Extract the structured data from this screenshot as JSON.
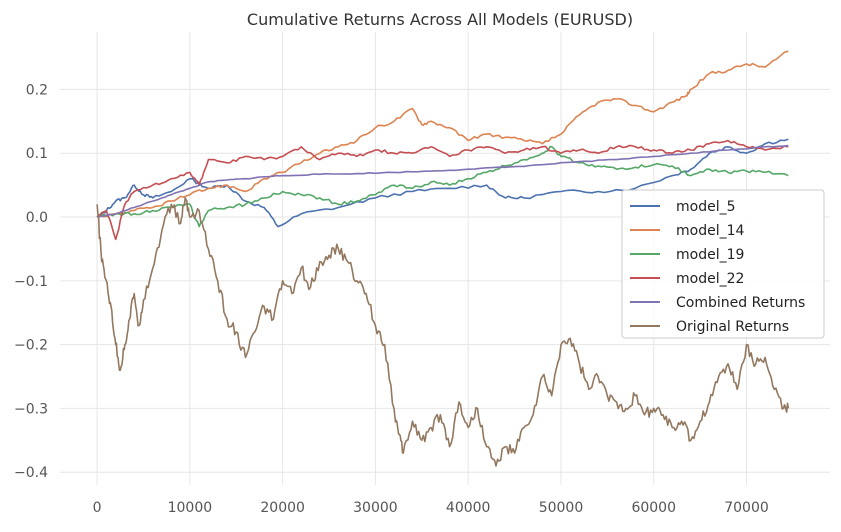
{
  "chart_data": {
    "type": "line",
    "title": "Cumulative Returns Across All Models (EURUSD)",
    "xlabel": "",
    "ylabel": "",
    "xlim": [
      -4000,
      79000
    ],
    "ylim": [
      -0.42,
      0.29
    ],
    "xticks": [
      0,
      10000,
      20000,
      30000,
      40000,
      50000,
      60000,
      70000
    ],
    "yticks": [
      -0.4,
      -0.3,
      -0.2,
      -0.1,
      0.0,
      0.1,
      0.2
    ],
    "xtick_labels": [
      "0",
      "10000",
      "20000",
      "30000",
      "40000",
      "50000",
      "60000",
      "70000"
    ],
    "ytick_labels": [
      "−0.4",
      "−0.3",
      "−0.2",
      "−0.1",
      "0.0",
      "0.1",
      "0.2"
    ],
    "grid": true,
    "legend_position": "center-right",
    "series": [
      {
        "name": "model_5",
        "color": "#4c72b0",
        "x": [
          0,
          1000,
          2000,
          3000,
          4000,
          5000,
          6000,
          8000,
          10000,
          12000,
          14000,
          16000,
          18000,
          19500,
          22000,
          26000,
          30000,
          34000,
          38000,
          42000,
          44000,
          46000,
          50000,
          54000,
          58000,
          62000,
          64000,
          66000,
          68000,
          70000,
          72000,
          74500
        ],
        "y": [
          0.0,
          0.01,
          0.025,
          0.03,
          0.05,
          0.035,
          0.03,
          0.04,
          0.06,
          0.045,
          0.05,
          0.025,
          0.015,
          -0.015,
          0.005,
          0.015,
          0.03,
          0.04,
          0.045,
          0.05,
          0.03,
          0.03,
          0.04,
          0.04,
          0.045,
          0.065,
          0.075,
          0.1,
          0.11,
          0.1,
          0.115,
          0.122
        ]
      },
      {
        "name": "model_14",
        "color": "#dd8452",
        "x": [
          0,
          2000,
          4000,
          6000,
          8000,
          10000,
          12000,
          14000,
          16000,
          18000,
          20000,
          22000,
          24000,
          26000,
          28000,
          30000,
          32000,
          34000,
          35000,
          36000,
          38000,
          40000,
          42000,
          44000,
          46000,
          48000,
          50000,
          52000,
          54000,
          56000,
          58000,
          60000,
          62000,
          63500,
          64000,
          66000,
          68000,
          70000,
          72000,
          74500
        ],
        "y": [
          0.0,
          0.005,
          0.01,
          0.015,
          0.025,
          0.035,
          0.045,
          0.05,
          0.04,
          0.06,
          0.07,
          0.085,
          0.1,
          0.11,
          0.12,
          0.14,
          0.15,
          0.17,
          0.145,
          0.15,
          0.14,
          0.12,
          0.13,
          0.125,
          0.12,
          0.115,
          0.13,
          0.16,
          0.18,
          0.185,
          0.175,
          0.165,
          0.18,
          0.19,
          0.2,
          0.225,
          0.23,
          0.24,
          0.235,
          0.26
        ]
      },
      {
        "name": "model_19",
        "color": "#55a868",
        "x": [
          0,
          2000,
          4000,
          6000,
          8000,
          10000,
          11000,
          12000,
          14000,
          16000,
          18000,
          20000,
          22000,
          24000,
          26000,
          28000,
          30000,
          32000,
          34000,
          36000,
          38000,
          40000,
          42000,
          44000,
          46000,
          48000,
          49000,
          50000,
          52000,
          54000,
          56000,
          58000,
          60000,
          62000,
          64000,
          66000,
          68000,
          70000,
          72000,
          74500
        ],
        "y": [
          0.0,
          0.005,
          0.005,
          0.01,
          0.015,
          0.02,
          -0.015,
          0.01,
          0.015,
          0.02,
          0.03,
          0.04,
          0.035,
          0.03,
          0.02,
          0.025,
          0.035,
          0.05,
          0.045,
          0.055,
          0.05,
          0.06,
          0.07,
          0.08,
          0.09,
          0.1,
          0.11,
          0.095,
          0.085,
          0.08,
          0.075,
          0.078,
          0.082,
          0.08,
          0.065,
          0.075,
          0.07,
          0.072,
          0.07,
          0.065
        ]
      },
      {
        "name": "model_22",
        "color": "#c44e52",
        "x": [
          0,
          1000,
          2000,
          3000,
          4000,
          6000,
          8000,
          10000,
          11000,
          12000,
          14000,
          16000,
          18000,
          20000,
          22000,
          24000,
          26000,
          28000,
          30000,
          32000,
          34000,
          36000,
          38000,
          40000,
          42000,
          44000,
          46000,
          48000,
          50000,
          52000,
          54000,
          56000,
          58000,
          60000,
          62000,
          64000,
          66000,
          68000,
          70000,
          72000,
          74500
        ],
        "y": [
          0.0,
          0.01,
          -0.035,
          0.02,
          0.04,
          0.05,
          0.06,
          0.07,
          0.05,
          0.09,
          0.085,
          0.095,
          0.09,
          0.095,
          0.11,
          0.09,
          0.1,
          0.095,
          0.105,
          0.1,
          0.1,
          0.11,
          0.095,
          0.105,
          0.11,
          0.1,
          0.105,
          0.11,
          0.1,
          0.105,
          0.1,
          0.11,
          0.11,
          0.105,
          0.1,
          0.105,
          0.115,
          0.12,
          0.11,
          0.105,
          0.11
        ]
      },
      {
        "name": "Combined Returns",
        "color": "#8172b3",
        "x": [
          0,
          2000,
          4000,
          6000,
          8000,
          10000,
          12000,
          14000,
          16000,
          18000,
          20000,
          24000,
          28000,
          32000,
          36000,
          40000,
          44000,
          48000,
          52000,
          56000,
          60000,
          64000,
          68000,
          72000,
          74500
        ],
        "y": [
          0.0,
          0.005,
          0.015,
          0.025,
          0.035,
          0.045,
          0.055,
          0.058,
          0.06,
          0.063,
          0.065,
          0.067,
          0.068,
          0.07,
          0.072,
          0.075,
          0.078,
          0.082,
          0.087,
          0.09,
          0.095,
          0.1,
          0.105,
          0.11,
          0.112
        ]
      },
      {
        "name": "Original Returns",
        "color": "#937860",
        "x": [
          0,
          500,
          1000,
          1500,
          2000,
          2500,
          3000,
          3500,
          4000,
          4500,
          5000,
          6000,
          7000,
          8000,
          9000,
          9500,
          10000,
          11000,
          12000,
          13000,
          14000,
          15000,
          16000,
          17000,
          18000,
          19000,
          20000,
          21000,
          22000,
          23000,
          24000,
          25000,
          26000,
          27000,
          28000,
          29000,
          30000,
          31000,
          32000,
          32500,
          33000,
          34000,
          35000,
          36000,
          37000,
          38000,
          39000,
          40000,
          41000,
          42000,
          43000,
          44000,
          45000,
          46000,
          47000,
          48000,
          49000,
          50000,
          51000,
          52000,
          53000,
          54000,
          55000,
          56000,
          57000,
          58000,
          59000,
          60000,
          61000,
          62000,
          63000,
          64000,
          65000,
          66000,
          67000,
          68000,
          69000,
          70000,
          71000,
          72000,
          73000,
          74000,
          74500
        ],
        "y": [
          0.02,
          -0.07,
          -0.1,
          -0.14,
          -0.2,
          -0.24,
          -0.2,
          -0.16,
          -0.12,
          -0.17,
          -0.13,
          -0.08,
          -0.02,
          0.02,
          -0.01,
          0.03,
          0.0,
          0.01,
          -0.05,
          -0.1,
          -0.16,
          -0.18,
          -0.22,
          -0.18,
          -0.14,
          -0.16,
          -0.1,
          -0.12,
          -0.08,
          -0.11,
          -0.07,
          -0.06,
          -0.05,
          -0.07,
          -0.1,
          -0.12,
          -0.17,
          -0.2,
          -0.3,
          -0.34,
          -0.37,
          -0.32,
          -0.35,
          -0.33,
          -0.31,
          -0.36,
          -0.29,
          -0.33,
          -0.3,
          -0.36,
          -0.39,
          -0.36,
          -0.37,
          -0.33,
          -0.31,
          -0.25,
          -0.28,
          -0.2,
          -0.19,
          -0.23,
          -0.27,
          -0.25,
          -0.28,
          -0.29,
          -0.3,
          -0.28,
          -0.31,
          -0.3,
          -0.31,
          -0.33,
          -0.32,
          -0.35,
          -0.32,
          -0.29,
          -0.25,
          -0.23,
          -0.27,
          -0.2,
          -0.23,
          -0.22,
          -0.27,
          -0.3,
          -0.3
        ]
      }
    ]
  }
}
